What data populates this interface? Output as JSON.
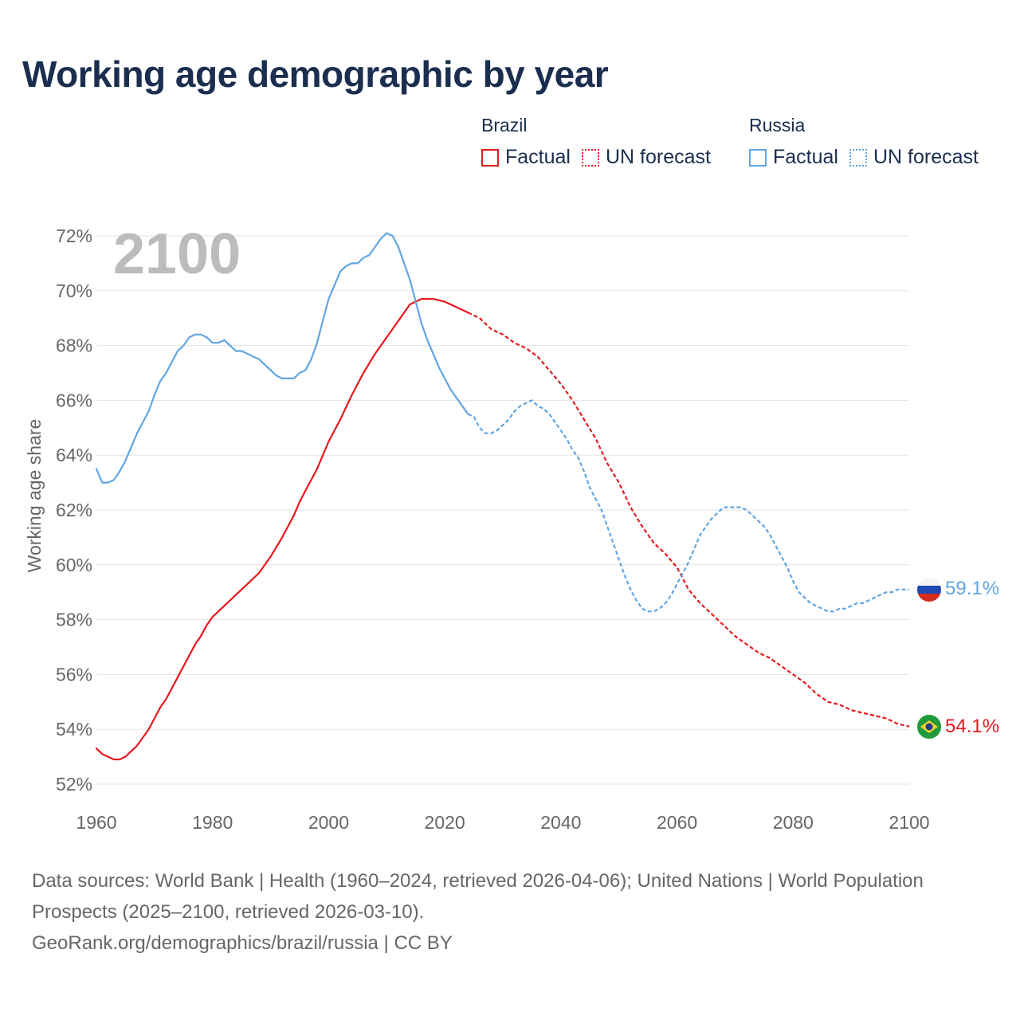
{
  "title": "Working age demographic by year",
  "legend": [
    {
      "group": "Brazil",
      "factual": "Factual",
      "forecast": "UN forecast",
      "color": "#e8191c"
    },
    {
      "group": "Russia",
      "factual": "Factual",
      "forecast": "UN forecast",
      "color": "#62a5e1"
    }
  ],
  "year_watermark": "2100",
  "end_labels": {
    "russia": "59.1%",
    "brazil": "54.1%"
  },
  "footer": {
    "sources": "Data sources: World Bank | Health (1960–2024, retrieved 2026-04-06); United Nations | World Population Prospects (2025–2100, retrieved 2026-03-10).",
    "link": "GeoRank.org/demographics/brazil/russia | CC BY"
  },
  "chart_data": {
    "type": "line",
    "ylabel": "Working age share",
    "xlabel": "",
    "xlim": [
      1960,
      2100
    ],
    "ylim": [
      52,
      72
    ],
    "x_ticks": [
      "1960",
      "1980",
      "2000",
      "2020",
      "2040",
      "2060",
      "2080",
      "2100"
    ],
    "y_ticks": [
      "52%",
      "54%",
      "56%",
      "58%",
      "60%",
      "62%",
      "64%",
      "66%",
      "68%",
      "70%",
      "72%"
    ],
    "grid": true,
    "series": [
      {
        "name": "Brazil",
        "color": "#e8191c",
        "forecast_start": 2024,
        "points": [
          [
            1960,
            53.3
          ],
          [
            1961,
            53.1
          ],
          [
            1962,
            53.0
          ],
          [
            1963,
            52.9
          ],
          [
            1964,
            52.9
          ],
          [
            1965,
            53.0
          ],
          [
            1966,
            53.2
          ],
          [
            1967,
            53.4
          ],
          [
            1968,
            53.7
          ],
          [
            1969,
            54.0
          ],
          [
            1970,
            54.4
          ],
          [
            1971,
            54.8
          ],
          [
            1972,
            55.1
          ],
          [
            1973,
            55.5
          ],
          [
            1974,
            55.9
          ],
          [
            1975,
            56.3
          ],
          [
            1976,
            56.7
          ],
          [
            1977,
            57.1
          ],
          [
            1978,
            57.4
          ],
          [
            1979,
            57.8
          ],
          [
            1980,
            58.1
          ],
          [
            1982,
            58.5
          ],
          [
            1984,
            58.9
          ],
          [
            1986,
            59.3
          ],
          [
            1988,
            59.7
          ],
          [
            1990,
            60.3
          ],
          [
            1992,
            61.0
          ],
          [
            1994,
            61.8
          ],
          [
            1995,
            62.3
          ],
          [
            1996,
            62.7
          ],
          [
            1998,
            63.5
          ],
          [
            2000,
            64.5
          ],
          [
            2002,
            65.3
          ],
          [
            2004,
            66.2
          ],
          [
            2006,
            67.0
          ],
          [
            2008,
            67.7
          ],
          [
            2010,
            68.3
          ],
          [
            2012,
            68.9
          ],
          [
            2014,
            69.5
          ],
          [
            2016,
            69.7
          ],
          [
            2018,
            69.7
          ],
          [
            2020,
            69.6
          ],
          [
            2022,
            69.4
          ],
          [
            2024,
            69.2
          ],
          [
            2026,
            69.0
          ],
          [
            2028,
            68.6
          ],
          [
            2030,
            68.4
          ],
          [
            2032,
            68.1
          ],
          [
            2034,
            67.9
          ],
          [
            2036,
            67.6
          ],
          [
            2038,
            67.1
          ],
          [
            2040,
            66.6
          ],
          [
            2042,
            66.0
          ],
          [
            2044,
            65.3
          ],
          [
            2046,
            64.6
          ],
          [
            2048,
            63.7
          ],
          [
            2050,
            63.0
          ],
          [
            2052,
            62.1
          ],
          [
            2054,
            61.4
          ],
          [
            2056,
            60.8
          ],
          [
            2058,
            60.4
          ],
          [
            2060,
            59.9
          ],
          [
            2062,
            59.1
          ],
          [
            2064,
            58.6
          ],
          [
            2066,
            58.2
          ],
          [
            2068,
            57.8
          ],
          [
            2070,
            57.4
          ],
          [
            2072,
            57.1
          ],
          [
            2074,
            56.8
          ],
          [
            2076,
            56.6
          ],
          [
            2078,
            56.3
          ],
          [
            2080,
            56.0
          ],
          [
            2082,
            55.7
          ],
          [
            2084,
            55.3
          ],
          [
            2086,
            55.0
          ],
          [
            2088,
            54.9
          ],
          [
            2090,
            54.7
          ],
          [
            2092,
            54.6
          ],
          [
            2094,
            54.5
          ],
          [
            2096,
            54.4
          ],
          [
            2098,
            54.2
          ],
          [
            2100,
            54.1
          ]
        ]
      },
      {
        "name": "Russia",
        "color": "#62a5e1",
        "forecast_start": 2024,
        "points": [
          [
            1960,
            63.5
          ],
          [
            1961,
            63.0
          ],
          [
            1962,
            63.0
          ],
          [
            1963,
            63.1
          ],
          [
            1964,
            63.4
          ],
          [
            1965,
            63.8
          ],
          [
            1966,
            64.3
          ],
          [
            1967,
            64.8
          ],
          [
            1968,
            65.2
          ],
          [
            1969,
            65.6
          ],
          [
            1970,
            66.2
          ],
          [
            1971,
            66.7
          ],
          [
            1972,
            67.0
          ],
          [
            1973,
            67.4
          ],
          [
            1974,
            67.8
          ],
          [
            1975,
            68.0
          ],
          [
            1976,
            68.3
          ],
          [
            1977,
            68.4
          ],
          [
            1978,
            68.4
          ],
          [
            1979,
            68.3
          ],
          [
            1980,
            68.1
          ],
          [
            1981,
            68.1
          ],
          [
            1982,
            68.2
          ],
          [
            1983,
            68.0
          ],
          [
            1984,
            67.8
          ],
          [
            1985,
            67.8
          ],
          [
            1986,
            67.7
          ],
          [
            1987,
            67.6
          ],
          [
            1988,
            67.5
          ],
          [
            1989,
            67.3
          ],
          [
            1990,
            67.1
          ],
          [
            1991,
            66.9
          ],
          [
            1992,
            66.8
          ],
          [
            1993,
            66.8
          ],
          [
            1994,
            66.8
          ],
          [
            1995,
            67.0
          ],
          [
            1996,
            67.1
          ],
          [
            1997,
            67.5
          ],
          [
            1998,
            68.1
          ],
          [
            1999,
            68.9
          ],
          [
            2000,
            69.7
          ],
          [
            2001,
            70.2
          ],
          [
            2002,
            70.7
          ],
          [
            2003,
            70.9
          ],
          [
            2004,
            71.0
          ],
          [
            2005,
            71.0
          ],
          [
            2006,
            71.2
          ],
          [
            2007,
            71.3
          ],
          [
            2008,
            71.6
          ],
          [
            2009,
            71.9
          ],
          [
            2010,
            72.1
          ],
          [
            2011,
            72.0
          ],
          [
            2012,
            71.6
          ],
          [
            2013,
            71.0
          ],
          [
            2014,
            70.4
          ],
          [
            2015,
            69.6
          ],
          [
            2016,
            68.8
          ],
          [
            2017,
            68.2
          ],
          [
            2018,
            67.7
          ],
          [
            2019,
            67.2
          ],
          [
            2020,
            66.8
          ],
          [
            2021,
            66.4
          ],
          [
            2022,
            66.1
          ],
          [
            2023,
            65.8
          ],
          [
            2024,
            65.5
          ],
          [
            2025,
            65.4
          ],
          [
            2026,
            65.0
          ],
          [
            2027,
            64.8
          ],
          [
            2028,
            64.8
          ],
          [
            2029,
            64.9
          ],
          [
            2030,
            65.1
          ],
          [
            2031,
            65.3
          ],
          [
            2032,
            65.6
          ],
          [
            2033,
            65.8
          ],
          [
            2034,
            65.9
          ],
          [
            2035,
            66.0
          ],
          [
            2036,
            65.8
          ],
          [
            2037,
            65.7
          ],
          [
            2038,
            65.5
          ],
          [
            2039,
            65.2
          ],
          [
            2040,
            64.9
          ],
          [
            2041,
            64.6
          ],
          [
            2042,
            64.2
          ],
          [
            2043,
            63.9
          ],
          [
            2044,
            63.4
          ],
          [
            2045,
            62.8
          ],
          [
            2046,
            62.4
          ],
          [
            2047,
            62.0
          ],
          [
            2048,
            61.4
          ],
          [
            2049,
            60.8
          ],
          [
            2050,
            60.2
          ],
          [
            2051,
            59.6
          ],
          [
            2052,
            59.1
          ],
          [
            2053,
            58.7
          ],
          [
            2054,
            58.4
          ],
          [
            2055,
            58.3
          ],
          [
            2056,
            58.3
          ],
          [
            2057,
            58.4
          ],
          [
            2058,
            58.6
          ],
          [
            2059,
            58.9
          ],
          [
            2060,
            59.3
          ],
          [
            2061,
            59.7
          ],
          [
            2062,
            60.1
          ],
          [
            2063,
            60.6
          ],
          [
            2064,
            61.1
          ],
          [
            2065,
            61.4
          ],
          [
            2066,
            61.7
          ],
          [
            2067,
            61.9
          ],
          [
            2068,
            62.1
          ],
          [
            2069,
            62.1
          ],
          [
            2070,
            62.1
          ],
          [
            2071,
            62.1
          ],
          [
            2072,
            62.0
          ],
          [
            2073,
            61.8
          ],
          [
            2074,
            61.6
          ],
          [
            2075,
            61.4
          ],
          [
            2076,
            61.1
          ],
          [
            2077,
            60.7
          ],
          [
            2078,
            60.3
          ],
          [
            2079,
            59.9
          ],
          [
            2080,
            59.4
          ],
          [
            2081,
            59.0
          ],
          [
            2082,
            58.8
          ],
          [
            2083,
            58.6
          ],
          [
            2084,
            58.5
          ],
          [
            2085,
            58.4
          ],
          [
            2086,
            58.3
          ],
          [
            2087,
            58.3
          ],
          [
            2088,
            58.4
          ],
          [
            2089,
            58.4
          ],
          [
            2090,
            58.5
          ],
          [
            2091,
            58.6
          ],
          [
            2092,
            58.6
          ],
          [
            2093,
            58.7
          ],
          [
            2094,
            58.8
          ],
          [
            2095,
            58.9
          ],
          [
            2096,
            59.0
          ],
          [
            2097,
            59.0
          ],
          [
            2098,
            59.1
          ],
          [
            2099,
            59.1
          ],
          [
            2100,
            59.1
          ]
        ]
      }
    ]
  }
}
